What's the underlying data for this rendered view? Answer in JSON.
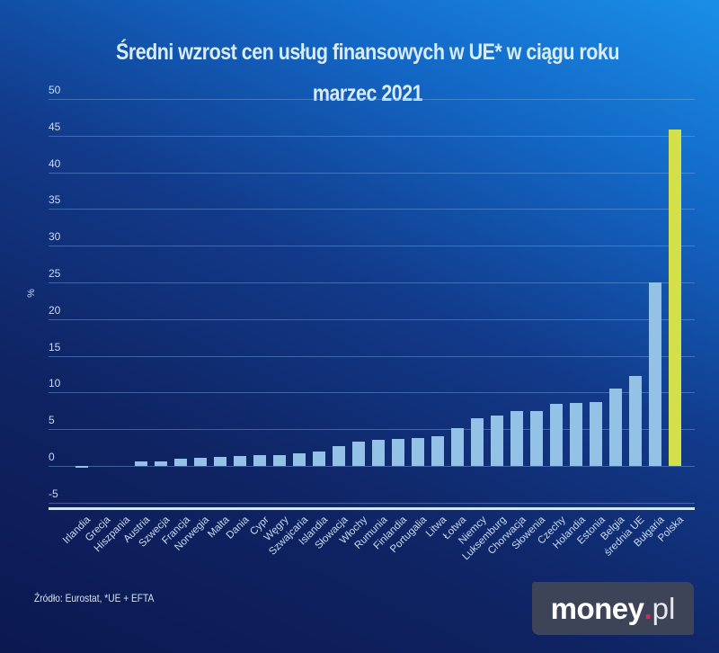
{
  "header": {
    "title": "Średni wzrost cen usług finansowych w UE* w ciągu roku",
    "subtitle": "marzec 2021"
  },
  "footer": {
    "source": "Źródło: Eurostat, *UE + EFTA",
    "logo_main": "money",
    "logo_dot": ".",
    "logo_tld": "pl"
  },
  "colors": {
    "bar": "#94c2e6",
    "highlight": "#d4e04a",
    "logo_bg": "#3e4458",
    "logo_dot": "#e0245e"
  },
  "chart_data": {
    "type": "bar",
    "title": "Średni wzrost cen usług finansowych w UE* w ciągu roku",
    "subtitle": "marzec 2021",
    "xlabel": "",
    "ylabel": "%",
    "ylim": [
      -5,
      50
    ],
    "yticks": [
      50,
      45,
      40,
      35,
      30,
      25,
      20,
      15,
      10,
      5,
      0,
      -5
    ],
    "grid": true,
    "legend": null,
    "highlighted_category": "Polska",
    "categories": [
      "Irlandia",
      "Grecja",
      "Hiszpania",
      "Austria",
      "Szwecja",
      "Francja",
      "Norwegia",
      "Malta",
      "Dania",
      "Cypr",
      "Węgry",
      "Szwajcaria",
      "Islandia",
      "Słowacja",
      "Włochy",
      "Rumunia",
      "Finlandia",
      "Portugalia",
      "Litwa",
      "Łotwa",
      "Niemcy",
      "Luksemburg",
      "Chorwacja",
      "Słowenia",
      "Czechy",
      "Holandia",
      "Estonia",
      "Belgia",
      "średnia UE",
      "Bułgaria",
      "Polska"
    ],
    "values": [
      -0.1,
      0.0,
      0.0,
      0.6,
      0.6,
      1.0,
      1.1,
      1.2,
      1.4,
      1.5,
      1.5,
      1.7,
      1.9,
      2.7,
      3.3,
      3.6,
      3.7,
      3.8,
      4.0,
      5.1,
      6.5,
      6.9,
      7.5,
      7.5,
      8.5,
      8.6,
      8.7,
      10.5,
      12.3,
      25.0,
      45.8
    ],
    "annotations": [
      "Źródło: Eurostat, *UE + EFTA"
    ]
  }
}
